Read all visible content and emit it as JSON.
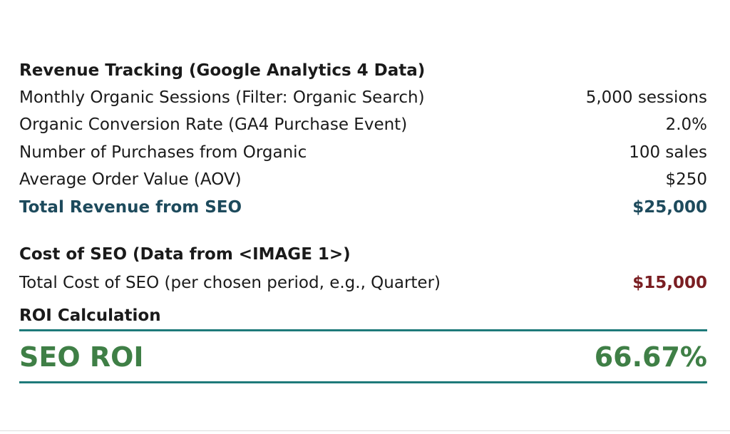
{
  "revenue": {
    "heading": "Revenue Tracking (Google Analytics 4 Data)",
    "rows": [
      [
        "Monthly Organic Sessions (Filter: Organic Search)",
        "5,000 sessions"
      ],
      [
        "Organic Conversion Rate (GA4 Purchase Event)",
        "2.0%"
      ],
      [
        "Number of Purchases from Organic",
        "100 sales"
      ],
      [
        "Average Order Value (AOV)",
        "$250"
      ]
    ],
    "total": [
      "Total Revenue from SEO",
      "$25,000"
    ]
  },
  "cost": {
    "heading": "Cost of SEO (Data from <IMAGE 1>)",
    "row": [
      "Total Cost of SEO (per chosen period, e.g., Quarter)",
      "$15,000"
    ]
  },
  "roi": {
    "heading": "ROI Calculation",
    "label": "SEO ROI",
    "value": "66.67%"
  }
}
